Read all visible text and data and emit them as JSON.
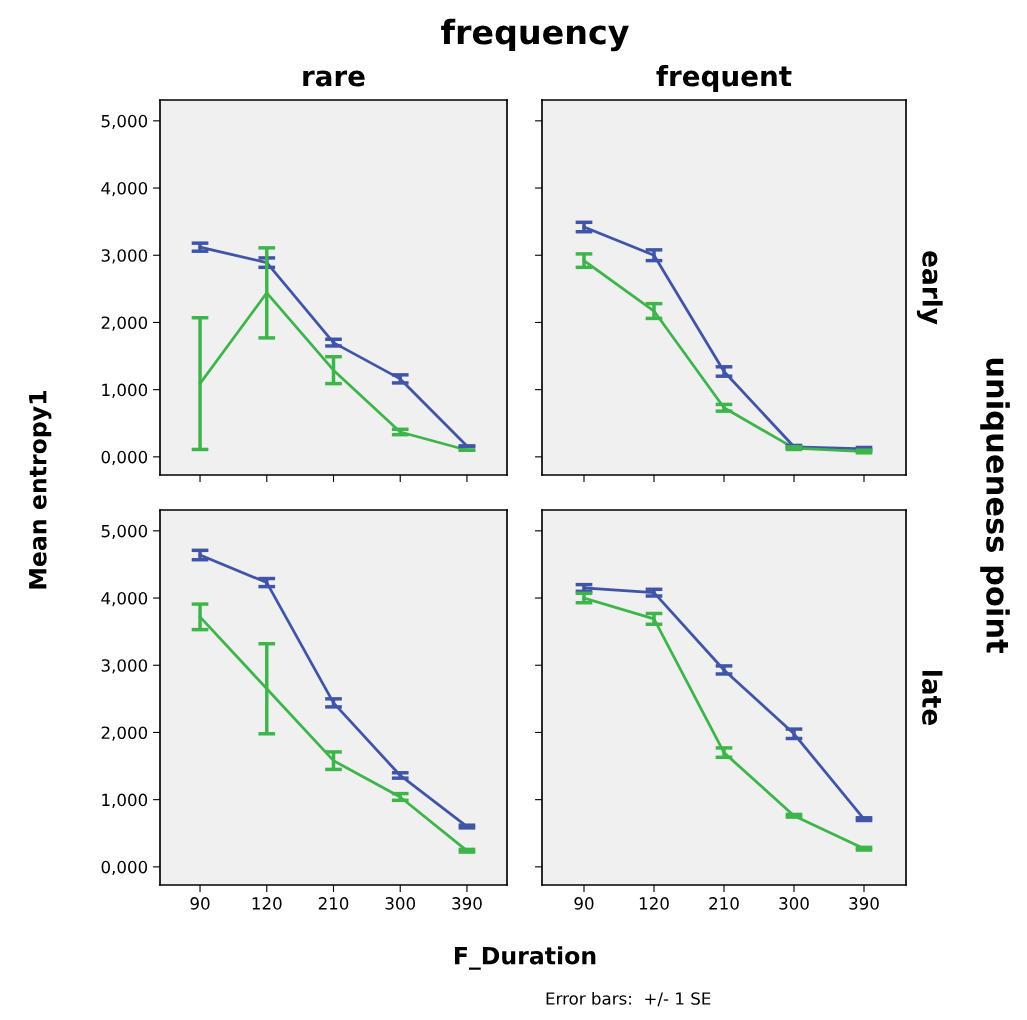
{
  "chart_data": [
    {
      "type": "line",
      "title": "rare",
      "ylabel": "Mean entropy1",
      "annotations": [
        "frequency"
      ],
      "categories": [
        "90",
        "120",
        "210",
        "300",
        "390"
      ],
      "ylim": [
        -0.27,
        5.31
      ],
      "yticks": [
        {
          "value": 0,
          "label": "0,000"
        },
        {
          "value": 1,
          "label": "1,000"
        },
        {
          "value": 2,
          "label": "2,000"
        },
        {
          "value": 3,
          "label": "3,000"
        },
        {
          "value": 4,
          "label": "4,000"
        },
        {
          "value": 5,
          "label": "5,000"
        }
      ],
      "tick_labels": "y",
      "grid": false,
      "legend": false,
      "series": [
        {
          "color": "#4055a8",
          "values": [
            3.12,
            2.89,
            1.7,
            1.16,
            0.16
          ],
          "errors": [
            0.06,
            0.07,
            0.05,
            0.06,
            null
          ]
        },
        {
          "color": "#3db54a",
          "values": [
            1.09,
            2.44,
            1.29,
            0.37,
            0.1
          ],
          "errors": [
            0.98,
            0.67,
            0.2,
            0.04,
            null
          ]
        }
      ]
    },
    {
      "type": "line",
      "title": "frequent",
      "y2label": "early",
      "annotations": [
        "uniqueness point"
      ],
      "categories": [
        "90",
        "120",
        "210",
        "300",
        "390"
      ],
      "ylim": [
        -0.27,
        5.31
      ],
      "yticks": [
        {
          "value": 0,
          "label": null
        },
        {
          "value": 1,
          "label": null
        },
        {
          "value": 2,
          "label": null
        },
        {
          "value": 3,
          "label": null
        },
        {
          "value": 4,
          "label": null
        },
        {
          "value": 5,
          "label": null
        }
      ],
      "tick_labels": false,
      "grid": false,
      "legend": false,
      "series": [
        {
          "color": "#4055a8",
          "values": [
            3.42,
            3.0,
            1.27,
            0.15,
            0.12
          ],
          "errors": [
            0.07,
            0.08,
            0.07,
            0.02,
            0.02
          ]
        },
        {
          "color": "#3db54a",
          "values": [
            2.92,
            2.17,
            0.73,
            0.13,
            0.08
          ],
          "errors": [
            0.1,
            0.11,
            0.05,
            0.02,
            0.02
          ]
        }
      ]
    },
    {
      "type": "line",
      "xlabel": "F_Duration",
      "categories": [
        "90",
        "120",
        "210",
        "300",
        "390"
      ],
      "ylim": [
        -0.27,
        5.31
      ],
      "yticks": [
        {
          "value": 0,
          "label": "0,000"
        },
        {
          "value": 1,
          "label": "1,000"
        },
        {
          "value": 2,
          "label": "2,000"
        },
        {
          "value": 3,
          "label": "3,000"
        },
        {
          "value": 4,
          "label": "4,000"
        },
        {
          "value": 5,
          "label": "5,000"
        }
      ],
      "grid": false,
      "legend": false,
      "series": [
        {
          "color": "#4055a8",
          "values": [
            4.64,
            4.23,
            2.44,
            1.36,
            0.6
          ],
          "errors": [
            0.07,
            0.06,
            0.06,
            0.04,
            0.02
          ]
        },
        {
          "color": "#3db54a",
          "values": [
            3.72,
            2.65,
            1.58,
            1.04,
            0.24
          ],
          "errors": [
            0.19,
            0.67,
            0.13,
            0.05,
            0.02
          ]
        }
      ]
    },
    {
      "type": "line",
      "y2label": "late",
      "annotations": [
        "Error bars:  +/- 1 SE"
      ],
      "categories": [
        "90",
        "120",
        "210",
        "300",
        "390"
      ],
      "ylim": [
        -0.27,
        5.31
      ],
      "yticks": [
        {
          "value": 0,
          "label": null
        },
        {
          "value": 1,
          "label": null
        },
        {
          "value": 2,
          "label": null
        },
        {
          "value": 3,
          "label": null
        },
        {
          "value": 4,
          "label": null
        },
        {
          "value": 5,
          "label": null
        }
      ],
      "tick_labels": "x",
      "grid": false,
      "legend": false,
      "series": [
        {
          "color": "#4055a8",
          "values": [
            4.15,
            4.08,
            2.93,
            1.98,
            0.71
          ],
          "errors": [
            0.05,
            0.05,
            0.06,
            0.07,
            0.02
          ]
        },
        {
          "color": "#3db54a",
          "values": [
            4.0,
            3.69,
            1.7,
            0.76,
            0.27
          ],
          "errors": [
            0.07,
            0.08,
            0.07,
            0.02,
            0.02
          ]
        }
      ]
    }
  ]
}
